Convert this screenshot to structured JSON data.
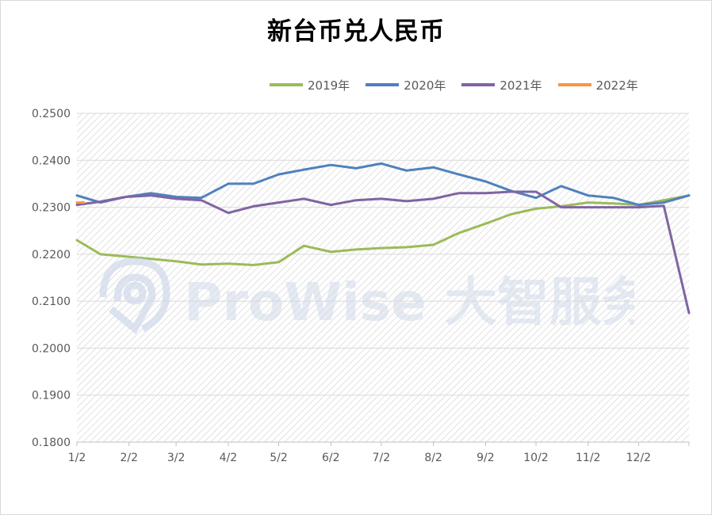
{
  "colors": {
    "y2019": "#9bbb59",
    "y2020": "#4f81bd",
    "y2021": "#8064a2",
    "y2022": "#f79646"
  },
  "watermark": {
    "text": "ProWise 大智服务",
    "icon": "prowise-logo-icon"
  },
  "chart_data": {
    "type": "line",
    "title": "新台币兑人民币",
    "xlabel": "",
    "ylabel": "",
    "ylim": [
      0.18,
      0.25
    ],
    "yticks": [
      "0.1800",
      "0.1900",
      "0.2000",
      "0.2100",
      "0.2200",
      "0.2300",
      "0.2400",
      "0.2500"
    ],
    "xticks": [
      "1/2",
      "2/2",
      "3/2",
      "4/2",
      "5/2",
      "6/2",
      "7/2",
      "8/2",
      "9/2",
      "10/2",
      "11/2",
      "12/2"
    ],
    "xdomain": [
      1,
      365
    ],
    "x_day_of_year": [
      1,
      15,
      30,
      45,
      60,
      75,
      91,
      106,
      121,
      136,
      152,
      167,
      182,
      197,
      213,
      228,
      244,
      259,
      274,
      289,
      305,
      320,
      335,
      350,
      365
    ],
    "legend_position": "top",
    "grid": true,
    "series": [
      {
        "name": "2019年",
        "values": [
          0.223,
          0.22,
          0.2195,
          0.219,
          0.2185,
          0.2178,
          0.218,
          0.2177,
          0.2183,
          0.2218,
          0.2205,
          0.221,
          0.2213,
          0.2215,
          0.222,
          0.2245,
          0.2265,
          0.2285,
          0.2297,
          0.2302,
          0.231,
          0.2308,
          0.2305,
          0.2315,
          0.2325
        ]
      },
      {
        "name": "2020年",
        "values": [
          0.2325,
          0.231,
          0.2322,
          0.233,
          0.2322,
          0.232,
          0.235,
          0.235,
          0.237,
          0.238,
          0.239,
          0.2383,
          0.2393,
          0.2378,
          0.2385,
          0.237,
          0.2355,
          0.2335,
          0.232,
          0.2345,
          0.2325,
          0.232,
          0.2305,
          0.231,
          0.2325
        ]
      },
      {
        "name": "2021年",
        "values": [
          0.2305,
          0.2312,
          0.2322,
          0.2325,
          0.2318,
          0.2315,
          0.2288,
          0.2302,
          0.231,
          0.2318,
          0.2305,
          0.2315,
          0.2318,
          0.2313,
          0.2318,
          0.233,
          0.233,
          0.2333,
          0.2333,
          0.23,
          0.23,
          0.23,
          0.23,
          0.2303,
          0.2075
        ]
      },
      {
        "name": "2022年",
        "x_day_of_year": [
          1,
          5
        ],
        "values": [
          0.231,
          0.231
        ]
      }
    ]
  }
}
